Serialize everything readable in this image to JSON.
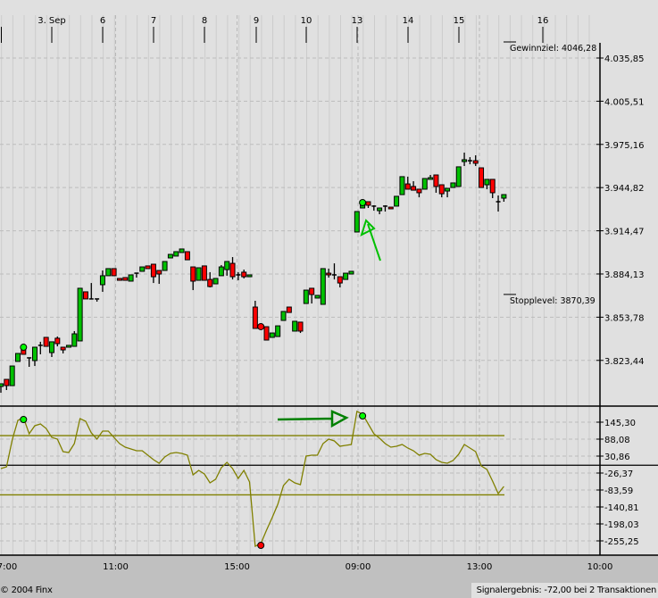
{
  "chart_data": [
    {
      "type": "candlestick",
      "title": "",
      "top_axis_labels": [
        "3. Sep",
        "6",
        "7",
        "8",
        "9",
        "10",
        "13",
        "14",
        "15",
        "16"
      ],
      "y_tick_labels": [
        "4.035,85",
        "4.005,51",
        "3.975,16",
        "3.944,82",
        "3.914,47",
        "3.884,13",
        "3.853,78",
        "3.823,44"
      ],
      "y_ticks": [
        4035.85,
        4005.51,
        3975.16,
        3944.82,
        3914.47,
        3884.13,
        3853.78,
        3823.44
      ],
      "ylim": [
        3791.3,
        4065.9
      ],
      "grid": true,
      "colors": {
        "up": "#00c000",
        "down": "#ff0000",
        "background": "#e0e0e0",
        "annotation": "#00c000"
      },
      "annotations": {
        "target_label": "Gewinnziel: 4046,28",
        "target_value": 4046.28,
        "stop_label": "Stopplevel: 3870,39",
        "stop_value": 3870.39
      },
      "signals": [
        {
          "candle": 5,
          "type": "buy",
          "color": "#00ff00"
        },
        {
          "candle": 47,
          "type": "sell",
          "color": "#ff0000"
        },
        {
          "candle": 65,
          "type": "buy",
          "color": "#00ff00"
        }
      ],
      "candles_ohlc": [
        [
          3805.1,
          3807.0,
          3800.7,
          3807.0
        ],
        [
          3810.1,
          3810.1,
          3802.6,
          3805.7
        ],
        [
          3805.7,
          3819.5,
          3805.7,
          3819.5
        ],
        [
          3822.7,
          3828.3,
          3822.7,
          3828.3
        ],
        [
          3830.8,
          3830.8,
          3827.7,
          3827.7
        ],
        [
          3825.2,
          3825.2,
          3818.9,
          3825.2
        ],
        [
          3823.3,
          3832.7,
          3819.5,
          3832.7
        ],
        [
          3834.0,
          3836.5,
          3827.7,
          3834.0
        ],
        [
          3839.6,
          3839.6,
          3833.3,
          3833.3
        ],
        [
          3828.9,
          3836.5,
          3825.8,
          3836.5
        ],
        [
          3839.0,
          3840.2,
          3833.3,
          3835.2
        ],
        [
          3832.7,
          3832.7,
          3828.3,
          3830.8
        ],
        [
          3832.7,
          3834.0,
          3832.7,
          3834.0
        ],
        [
          3833.3,
          3844.0,
          3833.3,
          3842.1
        ],
        [
          3837.1,
          3874.1,
          3837.1,
          3874.1
        ],
        [
          3871.6,
          3871.6,
          3866.6,
          3866.6
        ],
        [
          3866.6,
          3877.8,
          3866.6,
          3866.6
        ],
        [
          3866.6,
          3866.6,
          3864.7,
          3866.6
        ],
        [
          3876.6,
          3886.6,
          3871.6,
          3882.9
        ],
        [
          3882.9,
          3887.9,
          3882.9,
          3887.9
        ],
        [
          3887.9,
          3887.9,
          3882.9,
          3882.9
        ],
        [
          3881.0,
          3881.0,
          3879.7,
          3879.7
        ],
        [
          3881.6,
          3881.6,
          3879.7,
          3879.7
        ],
        [
          3879.1,
          3883.5,
          3879.1,
          3883.5
        ],
        [
          3884.7,
          3884.7,
          3881.6,
          3884.7
        ],
        [
          3886.0,
          3889.1,
          3886.0,
          3889.1
        ],
        [
          3889.8,
          3889.8,
          3887.9,
          3887.9
        ],
        [
          3891.0,
          3891.0,
          3877.8,
          3882.2
        ],
        [
          3886.6,
          3886.6,
          3877.2,
          3884.1
        ],
        [
          3886.6,
          3892.9,
          3886.6,
          3892.9
        ],
        [
          3895.4,
          3897.9,
          3895.4,
          3897.9
        ],
        [
          3896.7,
          3899.8,
          3896.7,
          3899.8
        ],
        [
          3899.2,
          3901.7,
          3899.2,
          3901.7
        ],
        [
          3899.8,
          3899.8,
          3894.1,
          3894.1
        ],
        [
          3889.1,
          3889.1,
          3872.8,
          3879.1
        ],
        [
          3879.7,
          3888.5,
          3879.7,
          3888.5
        ],
        [
          3889.8,
          3889.8,
          3879.7,
          3879.7
        ],
        [
          3880.3,
          3885.4,
          3874.7,
          3875.3
        ],
        [
          3877.2,
          3881.0,
          3877.2,
          3881.0
        ],
        [
          3882.9,
          3890.4,
          3882.9,
          3889.1
        ],
        [
          3887.2,
          3892.9,
          3882.9,
          3892.9
        ],
        [
          3891.6,
          3896.0,
          3880.3,
          3882.2
        ],
        [
          3883.5,
          3885.4,
          3879.7,
          3883.5
        ],
        [
          3885.4,
          3887.2,
          3881.0,
          3882.2
        ],
        [
          3882.2,
          3883.5,
          3882.2,
          3883.5
        ],
        [
          3860.9,
          3865.3,
          3845.9,
          3845.9
        ],
        [
          3847.1,
          3847.1,
          3845.9,
          3845.9
        ],
        [
          3847.1,
          3847.1,
          3837.7,
          3837.7
        ],
        [
          3839.6,
          3842.7,
          3839.6,
          3842.7
        ],
        [
          3840.2,
          3847.7,
          3840.2,
          3847.7
        ],
        [
          3851.5,
          3857.8,
          3851.5,
          3857.8
        ],
        [
          3860.9,
          3860.9,
          3857.1,
          3857.1
        ],
        [
          3844.0,
          3850.9,
          3844.0,
          3850.9
        ],
        [
          3850.3,
          3850.3,
          3842.7,
          3844.0
        ],
        [
          3863.4,
          3872.8,
          3863.4,
          3872.8
        ],
        [
          3874.1,
          3874.1,
          3863.4,
          3869.7
        ],
        [
          3867.2,
          3869.1,
          3867.2,
          3869.1
        ],
        [
          3862.8,
          3887.9,
          3862.8,
          3887.9
        ],
        [
          3884.7,
          3887.9,
          3881.6,
          3883.5
        ],
        [
          3883.5,
          3891.6,
          3880.3,
          3883.5
        ],
        [
          3882.2,
          3882.2,
          3874.7,
          3877.8
        ],
        [
          3880.3,
          3884.7,
          3880.3,
          3884.7
        ],
        [
          3884.1,
          3886.0,
          3884.1,
          3886.0
        ],
        [
          3913.6,
          3928.0,
          3913.6,
          3928.0
        ],
        [
          3930.5,
          3932.4,
          3930.5,
          3932.4
        ],
        [
          3934.9,
          3934.9,
          3930.5,
          3932.4
        ],
        [
          3931.8,
          3932.4,
          3928.6,
          3931.8
        ],
        [
          3928.6,
          3930.5,
          3926.1,
          3930.5
        ],
        [
          3931.8,
          3932.4,
          3928.0,
          3931.8
        ],
        [
          3931.1,
          3931.1,
          3929.9,
          3929.9
        ],
        [
          3931.8,
          3938.7,
          3931.8,
          3938.7
        ],
        [
          3939.9,
          3952.5,
          3939.9,
          3952.5
        ],
        [
          3947.4,
          3952.5,
          3943.7,
          3943.7
        ],
        [
          3945.6,
          3949.3,
          3943.0,
          3943.0
        ],
        [
          3943.7,
          3943.7,
          3938.0,
          3941.2
        ],
        [
          3943.7,
          3951.2,
          3943.7,
          3951.2
        ],
        [
          3950.6,
          3953.7,
          3950.6,
          3951.8
        ],
        [
          3953.7,
          3953.7,
          3941.2,
          3945.6
        ],
        [
          3946.8,
          3946.8,
          3938.0,
          3940.5
        ],
        [
          3942.4,
          3944.3,
          3938.0,
          3944.3
        ],
        [
          3944.9,
          3948.1,
          3944.9,
          3948.1
        ],
        [
          3945.6,
          3959.4,
          3945.6,
          3959.4
        ],
        [
          3963.1,
          3969.4,
          3960.0,
          3964.4
        ],
        [
          3963.7,
          3966.2,
          3961.2,
          3963.7
        ],
        [
          3963.7,
          3967.5,
          3960.0,
          3961.9
        ],
        [
          3958.7,
          3958.7,
          3944.9,
          3944.9
        ],
        [
          3946.8,
          3950.6,
          3943.7,
          3950.6
        ],
        [
          3950.6,
          3950.6,
          3937.4,
          3941.2
        ],
        [
          3934.9,
          3939.3,
          3928.0,
          3934.9
        ],
        [
          3937.4,
          3939.9,
          3934.9,
          3939.9
        ]
      ]
    },
    {
      "type": "line",
      "title": "",
      "x_tick_labels": [
        "7:00",
        "11:00",
        "15:00",
        "09:00",
        "13:00",
        "10:00"
      ],
      "y_tick_labels": [
        "145,30",
        "88,08",
        "30,86",
        "-26,37",
        "-83,59",
        "-140,81",
        "-198,03",
        "-255,25"
      ],
      "y_ticks": [
        145.3,
        88.08,
        30.86,
        -26.37,
        -83.59,
        -140.81,
        -198.03,
        -255.25
      ],
      "ylim": [
        -295,
        200
      ],
      "bands": [
        100,
        0,
        -100
      ],
      "colors": {
        "line": "#808000",
        "band": "#808000",
        "zero": "#000000"
      },
      "values": [
        -11.3,
        -5.3,
        85.1,
        151.3,
        160.4,
        106.2,
        133.3,
        139.3,
        124.2,
        94.1,
        88.1,
        45.9,
        42.9,
        73.0,
        157.3,
        148.3,
        109.2,
        88.1,
        115.2,
        115.2,
        94.1,
        73.0,
        61.0,
        55.0,
        48.9,
        48.9,
        33.9,
        18.8,
        6.8,
        27.9,
        39.9,
        42.9,
        39.9,
        33.9,
        -32.4,
        -17.3,
        -29.4,
        -59.5,
        -47.4,
        -8.3,
        9.8,
        -11.3,
        -44.4,
        -17.3,
        -56.5,
        -273.3,
        -264.3,
        -219.1,
        -177.0,
        -131.8,
        -68.5,
        -47.4,
        -59.5,
        -65.5,
        30.9,
        33.9,
        33.9,
        73.0,
        88.1,
        82.1,
        64.0,
        67.0,
        70.0,
        181.4,
        172.4,
        139.3,
        106.2,
        91.1,
        73.0,
        61.0,
        64.0,
        70.0,
        58.0,
        48.9,
        33.9,
        39.9,
        36.9,
        18.8,
        9.8,
        6.8,
        15.8,
        36.9,
        70.0,
        58.0,
        45.9,
        -2.3,
        -14.3,
        -53.5,
        -95.6,
        -71.5
      ]
    }
  ],
  "footer": {
    "copyright": "© 2004 Finx",
    "status": "Signalergebnis: -72,00 bei 2 Transaktionen"
  }
}
